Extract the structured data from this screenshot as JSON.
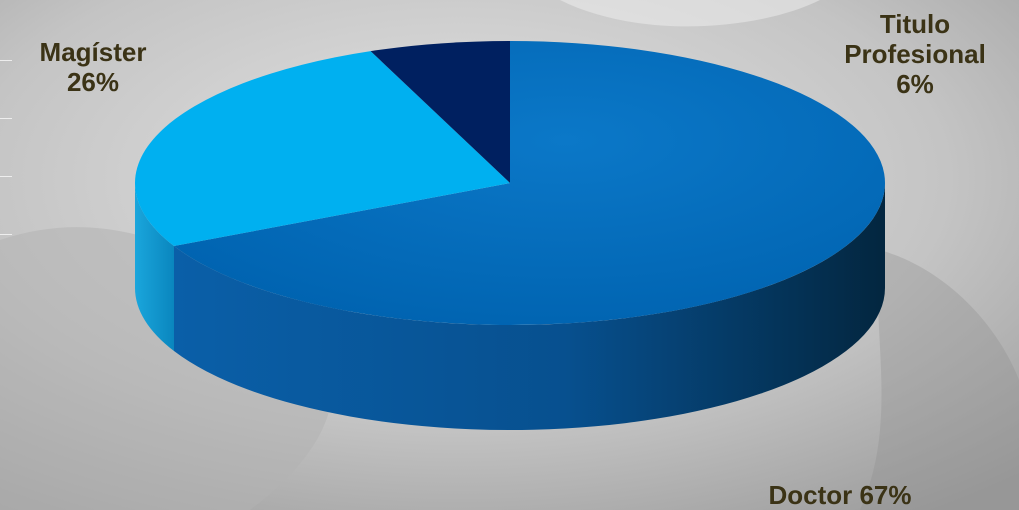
{
  "chart_data": {
    "type": "pie",
    "style": "3d",
    "title": "",
    "slices": [
      {
        "label": "Doctor",
        "value": 67,
        "display": "Doctor 67%",
        "color": "#0070c0"
      },
      {
        "label": "Magíster",
        "value": 26,
        "display": "26%",
        "color": "#00b0f0"
      },
      {
        "label": "Titulo Profesional",
        "value": 6,
        "display": "6%",
        "color": "#002060"
      }
    ],
    "labels": {
      "magister_name": "Magíster",
      "magister_pct": "26%",
      "titulo_line1": "Titulo",
      "titulo_line2": "Profesional",
      "titulo_pct": "6%",
      "doctor": "Doctor 67%"
    },
    "label_color": "#3b3316",
    "legend": "none"
  }
}
